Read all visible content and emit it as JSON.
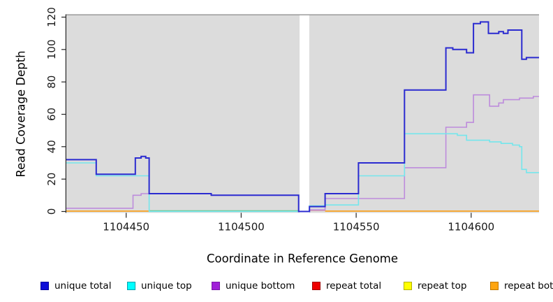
{
  "chart_data": {
    "type": "line",
    "title": "",
    "xlabel": "Coordinate in Reference Genome",
    "ylabel": "Read Coverage Depth",
    "xlim": [
      1104424,
      1104629.5
    ],
    "ylim": [
      0,
      120
    ],
    "x_ticks": [
      1104450,
      1104500,
      1104550,
      1104600
    ],
    "y_ticks": [
      0,
      20,
      40,
      60,
      80,
      100,
      120
    ],
    "plot_bg": "#dcdcdc",
    "background": "#ffffff",
    "grid": "off",
    "legend_position": "bottom",
    "gap_band": {
      "x1": 1104525.4,
      "x2": 1104529.6,
      "color": "#ffffff"
    },
    "series": [
      {
        "name": "zero-overlap-blend",
        "legend_label": null,
        "color": "#6fc98f",
        "width": 1.6,
        "note": "cyan/yellow/orange lines overlapping at depth 0",
        "segments": [
          [
            1104460,
            1104525,
            0.4
          ]
        ]
      },
      {
        "name": "repeat-bottom",
        "legend_label": "repeat bottom",
        "color": "#ff9800",
        "width": 1.6,
        "segments": [
          [
            1104424,
            1104460,
            0.2
          ],
          [
            1104536.5,
            1104629.5,
            0.2
          ]
        ]
      },
      {
        "name": "repeat-total",
        "legend_label": "repeat total",
        "color": "#d84a5a",
        "width": 1.5,
        "segments": [
          [
            1104529.7,
            1104536.5,
            0.8
          ]
        ]
      },
      {
        "name": "unique-bottom",
        "legend_label": "unique bottom",
        "color": "#bd8bdc",
        "width": 1.6,
        "segments": [
          [
            1104424,
            1104453,
            2
          ],
          [
            1104453,
            1104456.5,
            10
          ],
          [
            1104456.5,
            1104487,
            11
          ],
          [
            1104487,
            1104525,
            10
          ],
          [
            1104525,
            1104529.7,
            0
          ],
          [
            1104529.7,
            1104536.5,
            1
          ],
          [
            1104536.5,
            1104571,
            8
          ],
          [
            1104571,
            1104589,
            27
          ],
          [
            1104589,
            1104598,
            52
          ],
          [
            1104598,
            1104601,
            55
          ],
          [
            1104601,
            1104608,
            72
          ],
          [
            1104608,
            1104612,
            65
          ],
          [
            1104612,
            1104614,
            67
          ],
          [
            1104614,
            1104621,
            69
          ],
          [
            1104621,
            1104627,
            70
          ],
          [
            1104627,
            1104629.5,
            71
          ]
        ]
      },
      {
        "name": "unique-top",
        "legend_label": "unique top",
        "color": "#74e6ec",
        "width": 1.6,
        "segments": [
          [
            1104424,
            1104437,
            30
          ],
          [
            1104437,
            1104460,
            22
          ],
          [
            1104460,
            1104529.7,
            0
          ],
          [
            1104529.7,
            1104536.5,
            3.5
          ],
          [
            1104536.5,
            1104551,
            4
          ],
          [
            1104551,
            1104571,
            22
          ],
          [
            1104571,
            1104594,
            48
          ],
          [
            1104594,
            1104598,
            47
          ],
          [
            1104598,
            1104608,
            44
          ],
          [
            1104608,
            1104613,
            43
          ],
          [
            1104613,
            1104618,
            42
          ],
          [
            1104618,
            1104621,
            41
          ],
          [
            1104621,
            1104622,
            40
          ],
          [
            1104622,
            1104624,
            26
          ],
          [
            1104624,
            1104629.5,
            24
          ]
        ]
      },
      {
        "name": "unique-total",
        "legend_label": "unique total",
        "color": "#2b2bd0",
        "width": 2,
        "segments": [
          [
            1104424,
            1104437,
            32
          ],
          [
            1104437,
            1104454,
            23
          ],
          [
            1104454,
            1104456.5,
            33
          ],
          [
            1104456.5,
            1104458.5,
            34
          ],
          [
            1104458.5,
            1104460,
            33
          ],
          [
            1104460,
            1104487,
            11
          ],
          [
            1104487,
            1104525,
            10
          ],
          [
            1104525,
            1104529.7,
            0
          ],
          [
            1104529.7,
            1104536.5,
            3
          ],
          [
            1104536.5,
            1104551,
            11
          ],
          [
            1104551,
            1104571,
            30
          ],
          [
            1104571,
            1104589,
            75
          ],
          [
            1104589,
            1104592,
            101
          ],
          [
            1104592,
            1104598,
            100
          ],
          [
            1104598,
            1104601,
            98
          ],
          [
            1104601,
            1104604,
            116
          ],
          [
            1104604,
            1104607.5,
            117
          ],
          [
            1104607.5,
            1104612,
            110
          ],
          [
            1104612,
            1104614,
            111
          ],
          [
            1104614,
            1104616,
            110
          ],
          [
            1104616,
            1104622,
            112
          ],
          [
            1104622,
            1104624,
            94
          ],
          [
            1104624,
            1104629.5,
            95
          ]
        ]
      }
    ],
    "legend": [
      {
        "label": "unique total",
        "fill": "#0d0dd8",
        "border": "#0000a0"
      },
      {
        "label": "unique top",
        "fill": "#00ffff",
        "border": "#00a0ac"
      },
      {
        "label": "unique bottom",
        "fill": "#a020d8",
        "border": "#7818a8"
      },
      {
        "label": "repeat total",
        "fill": "#ee0000",
        "border": "#a00000"
      },
      {
        "label": "repeat top",
        "fill": "#ffff00",
        "border": "#b0b000"
      },
      {
        "label": "repeat bottom",
        "fill": "#ffa510",
        "border": "#c07800"
      }
    ]
  }
}
